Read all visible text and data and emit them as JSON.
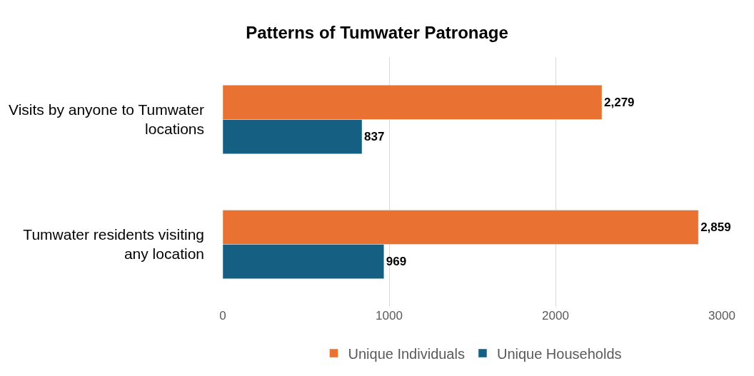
{
  "chart_data": {
    "type": "bar",
    "orientation": "horizontal",
    "title": "Patterns of Tumwater Patronage",
    "categories": [
      "Visits by anyone to Tumwater locations",
      "Tumwater residents visiting any location"
    ],
    "series": [
      {
        "name": "Unique Individuals",
        "color": "#e97132",
        "values": [
          2279,
          2859
        ],
        "value_labels": [
          "2,279",
          "2,859"
        ]
      },
      {
        "name": "Unique Households",
        "color": "#156082",
        "values": [
          837,
          969
        ],
        "value_labels": [
          "837",
          "969"
        ]
      }
    ],
    "xlim": [
      0,
      3000
    ],
    "xticks": [
      0,
      1000,
      2000,
      3000
    ],
    "grid": "x",
    "legend": "bottom"
  }
}
